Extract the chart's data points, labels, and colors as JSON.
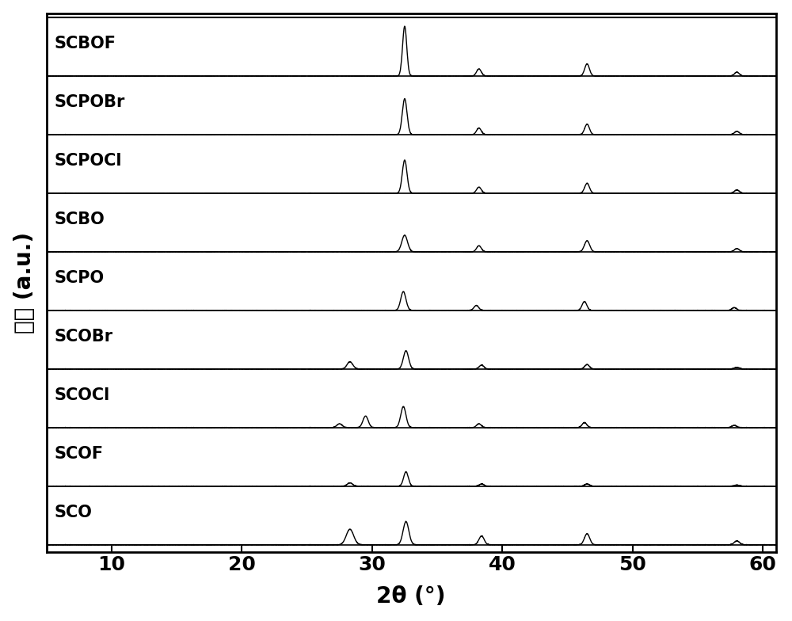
{
  "samples": [
    "SCO",
    "SCOF",
    "SCOCl",
    "SCOBr",
    "SCPO",
    "SCBO",
    "SCPOCl",
    "SCPOBr",
    "SCBOF"
  ],
  "xmin": 5,
  "xmax": 61,
  "xlabel": "2θ (°)",
  "ylabel": "强度 (a.u.)",
  "line_color": "#000000",
  "background_color": "#ffffff",
  "label_fontsize": 20,
  "tick_fontsize": 18,
  "sample_label_fontsize": 15,
  "peak_positions": {
    "SCO": [
      28.3,
      32.6,
      38.4,
      46.5,
      58.0
    ],
    "SCOF": [
      28.3,
      32.6,
      38.4,
      46.5,
      58.0
    ],
    "SCOCl": [
      27.5,
      29.5,
      32.4,
      38.2,
      46.3,
      57.8
    ],
    "SCOBr": [
      28.3,
      32.6,
      38.4,
      46.5,
      58.0
    ],
    "SCPO": [
      32.4,
      38.0,
      46.3,
      57.8
    ],
    "SCBO": [
      32.5,
      38.2,
      46.5,
      58.0
    ],
    "SCPOCl": [
      32.5,
      38.2,
      46.5,
      58.0
    ],
    "SCPOBr": [
      32.5,
      38.2,
      46.5,
      58.0
    ],
    "SCBOF": [
      32.5,
      38.2,
      46.5,
      58.0
    ]
  },
  "peak_heights": {
    "SCO": [
      0.28,
      0.42,
      0.16,
      0.2,
      0.07
    ],
    "SCOF": [
      0.06,
      0.26,
      0.04,
      0.04,
      0.02
    ],
    "SCOCl": [
      0.07,
      0.21,
      0.38,
      0.07,
      0.09,
      0.04
    ],
    "SCOBr": [
      0.13,
      0.33,
      0.07,
      0.08,
      0.03
    ],
    "SCPO": [
      0.34,
      0.09,
      0.16,
      0.05
    ],
    "SCBO": [
      0.3,
      0.11,
      0.2,
      0.06
    ],
    "SCPOCl": [
      0.6,
      0.11,
      0.18,
      0.06
    ],
    "SCPOBr": [
      0.65,
      0.12,
      0.19,
      0.06
    ],
    "SCBOF": [
      0.9,
      0.13,
      0.22,
      0.07
    ]
  },
  "peak_widths": {
    "SCO": [
      0.28,
      0.22,
      0.2,
      0.2,
      0.2
    ],
    "SCOF": [
      0.2,
      0.18,
      0.18,
      0.18,
      0.18
    ],
    "SCOCl": [
      0.2,
      0.2,
      0.2,
      0.18,
      0.18,
      0.18
    ],
    "SCOBr": [
      0.22,
      0.2,
      0.18,
      0.18,
      0.18
    ],
    "SCPO": [
      0.2,
      0.18,
      0.18,
      0.18
    ],
    "SCBO": [
      0.22,
      0.18,
      0.2,
      0.18
    ],
    "SCPOCl": [
      0.18,
      0.18,
      0.18,
      0.18
    ],
    "SCPOBr": [
      0.18,
      0.18,
      0.18,
      0.18
    ],
    "SCBOF": [
      0.16,
      0.18,
      0.18,
      0.18
    ]
  }
}
